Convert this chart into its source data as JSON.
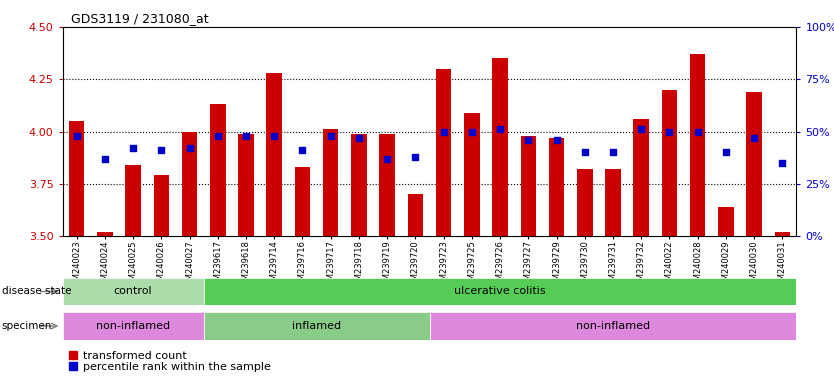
{
  "title": "GDS3119 / 231080_at",
  "samples": [
    "GSM240023",
    "GSM240024",
    "GSM240025",
    "GSM240026",
    "GSM240027",
    "GSM239617",
    "GSM239618",
    "GSM239714",
    "GSM239716",
    "GSM239717",
    "GSM239718",
    "GSM239719",
    "GSM239720",
    "GSM239723",
    "GSM239725",
    "GSM239726",
    "GSM239727",
    "GSM239729",
    "GSM239730",
    "GSM239731",
    "GSM239732",
    "GSM240022",
    "GSM240028",
    "GSM240029",
    "GSM240030",
    "GSM240031"
  ],
  "transformed_count": [
    4.05,
    3.52,
    3.84,
    3.79,
    4.0,
    4.13,
    3.99,
    4.28,
    3.83,
    4.01,
    3.99,
    3.99,
    3.7,
    4.3,
    4.09,
    4.35,
    3.98,
    3.97,
    3.82,
    3.82,
    4.06,
    4.2,
    4.37,
    3.64,
    4.19,
    3.52
  ],
  "percentile_rank": [
    48,
    37,
    42,
    41,
    42,
    48,
    48,
    48,
    41,
    48,
    47,
    37,
    38,
    50,
    50,
    51,
    46,
    46,
    40,
    40,
    51,
    50,
    50,
    40,
    47,
    35
  ],
  "ylim_left": [
    3.5,
    4.5
  ],
  "ylim_right": [
    0,
    100
  ],
  "yticks_left": [
    3.5,
    3.75,
    4.0,
    4.25,
    4.5
  ],
  "yticks_right": [
    0,
    25,
    50,
    75,
    100
  ],
  "bar_color": "#cc0000",
  "dot_color": "#0000cc",
  "grid_color": "#000000",
  "ds_groups": [
    {
      "label": "control",
      "start": 0,
      "end": 5,
      "color": "#aaddaa"
    },
    {
      "label": "ulcerative colitis",
      "start": 5,
      "end": 26,
      "color": "#55cc55"
    }
  ],
  "sp_groups": [
    {
      "label": "non-inflamed",
      "start": 0,
      "end": 5,
      "color": "#dd88dd"
    },
    {
      "label": "inflamed",
      "start": 5,
      "end": 13,
      "color": "#88cc88"
    },
    {
      "label": "non-inflamed",
      "start": 13,
      "end": 26,
      "color": "#dd88dd"
    }
  ],
  "bg_color": "#ffffff",
  "label_color_left": "#cc0000",
  "label_color_right": "#0000cc"
}
